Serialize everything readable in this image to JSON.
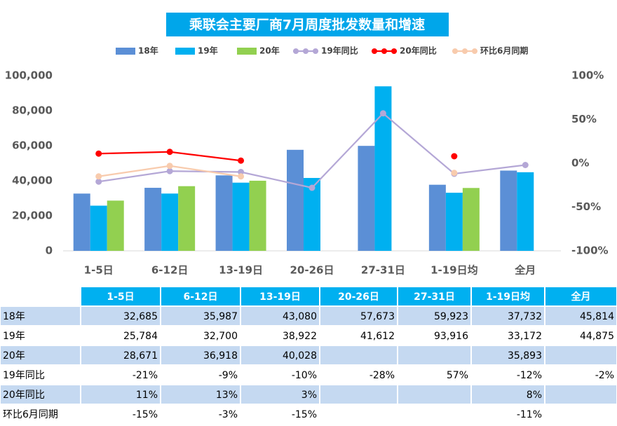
{
  "chart_data": {
    "type": "combo",
    "title": "乘联会主要厂商7月周度批发数量和增速",
    "categories": [
      "1-5日",
      "6-12日",
      "13-19日",
      "20-26日",
      "27-31日",
      "1-19日均",
      "全月"
    ],
    "ylim": [
      0,
      100000
    ],
    "yticks": [
      0,
      {
        "value": 20000,
        "label": "20,000"
      },
      {
        "value": 40000,
        "label": "40,000"
      },
      {
        "value": 60000,
        "label": "60,000"
      },
      {
        "value": 80000,
        "label": "80,000"
      },
      {
        "value": 100000,
        "label": "100,000"
      }
    ],
    "y2lim": [
      -100,
      100
    ],
    "y2ticks": [
      {
        "value": -100,
        "label": "-100%"
      },
      {
        "value": -50,
        "label": "-50%"
      },
      {
        "value": 0,
        "label": "0%"
      },
      {
        "value": 50,
        "label": "50%"
      },
      {
        "value": 100,
        "label": "100%"
      }
    ],
    "series": [
      {
        "name": "18年",
        "type": "bar",
        "color": "#5b8fd6",
        "values": [
          32685,
          35987,
          43080,
          57673,
          59923,
          37732,
          45814
        ],
        "value_labels": [
          "32,685",
          "35,987",
          "43,080",
          "57,673",
          "59,923",
          "37,732",
          "45,814"
        ]
      },
      {
        "name": "19年",
        "type": "bar",
        "color": "#00b0f0",
        "values": [
          25784,
          32700,
          38922,
          41612,
          93916,
          33172,
          44875
        ],
        "value_labels": [
          "25,784",
          "32,700",
          "38,922",
          "41,612",
          "93,916",
          "33,172",
          "44,875"
        ]
      },
      {
        "name": "20年",
        "type": "bar",
        "color": "#92d050",
        "values": [
          28671,
          36918,
          40028,
          null,
          null,
          35893,
          null
        ],
        "value_labels": [
          "28,671",
          "36,918",
          "40,028",
          null,
          null,
          "35,893",
          null
        ]
      },
      {
        "name": "19年同比",
        "type": "line",
        "axis": "y2",
        "color": "#b4a7d6",
        "values": [
          -21,
          -9,
          -10,
          -28,
          57,
          -12,
          -2
        ],
        "value_labels": [
          "-21%",
          "-9%",
          "-10%",
          "-28%",
          "57%",
          "-12%",
          "-2%"
        ]
      },
      {
        "name": "20年同比",
        "type": "line",
        "axis": "y2",
        "color": "#ff0000",
        "values": [
          11,
          13,
          3,
          null,
          null,
          8,
          null
        ],
        "value_labels": [
          "11%",
          "13%",
          "3%",
          null,
          null,
          "8%",
          null
        ]
      },
      {
        "name": "环比6月同期",
        "type": "line",
        "axis": "y2",
        "color": "#f8cbad",
        "values": [
          -15,
          -3,
          -15,
          null,
          null,
          -11,
          null
        ],
        "value_labels": [
          "-15%",
          "-3%",
          "-15%",
          null,
          null,
          "-11%",
          null
        ]
      }
    ]
  }
}
